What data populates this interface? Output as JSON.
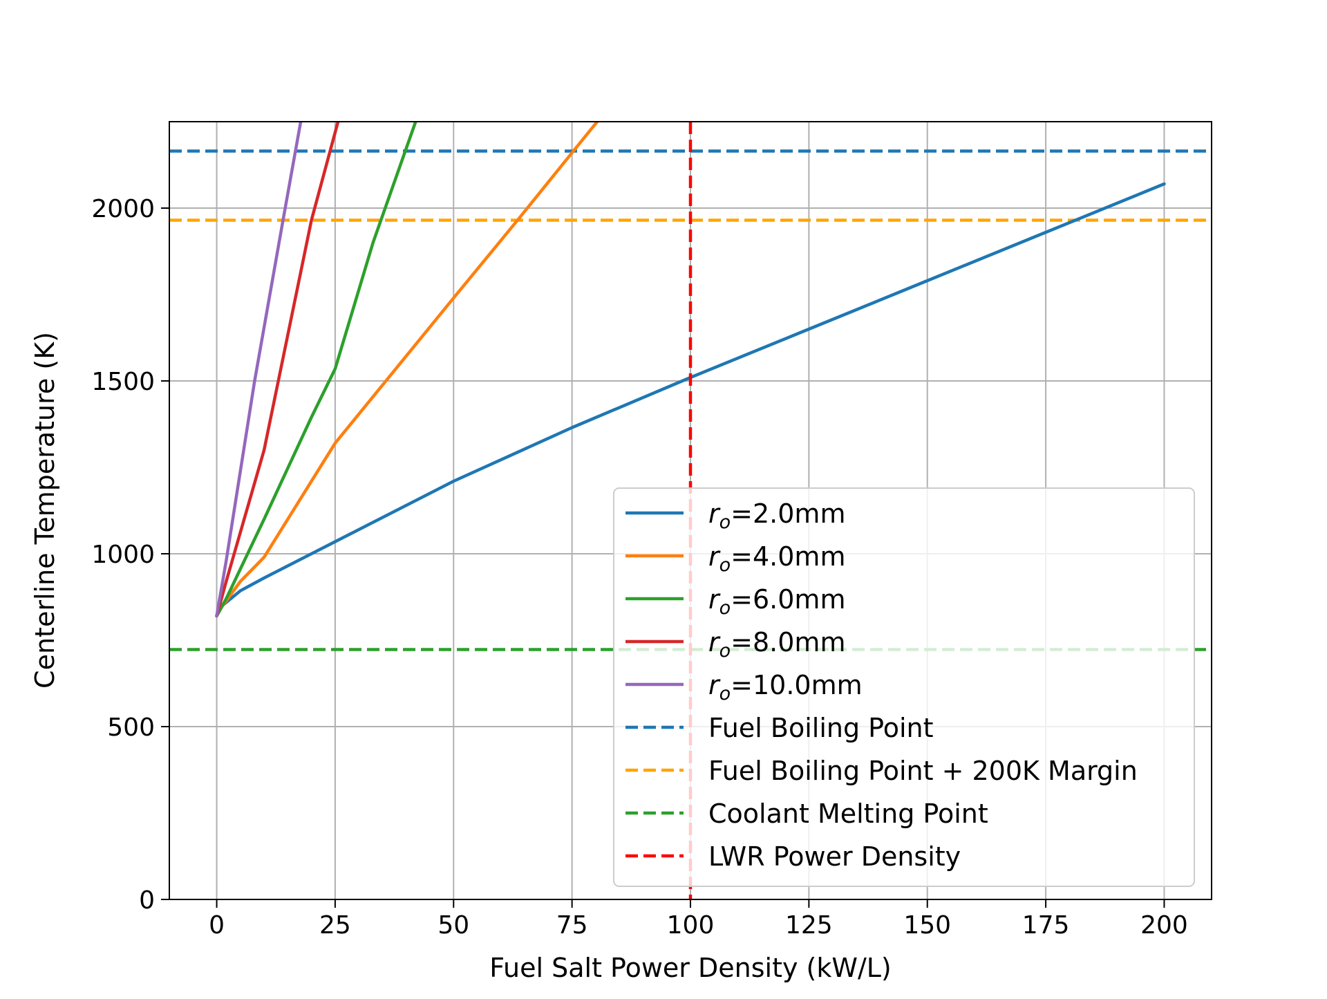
{
  "chart_data": {
    "type": "line",
    "title": "",
    "xlabel": "Fuel Salt Power Density (kW/L)",
    "ylabel": "Centerline Temperature (K)",
    "xlim": [
      -10,
      210
    ],
    "ylim": [
      0,
      2250
    ],
    "xticks": [
      0,
      25,
      50,
      75,
      100,
      125,
      150,
      175,
      200
    ],
    "yticks": [
      0,
      500,
      1000,
      1500,
      2000
    ],
    "grid": true,
    "legend_position": "lower-right",
    "series": [
      {
        "name": "r_o=2.0mm",
        "label_main": "r",
        "label_sub": "o",
        "label_rest": "=2.0mm",
        "color": "#1f77b4",
        "style": "solid",
        "x": [
          0,
          1,
          5,
          10,
          20,
          30,
          50,
          75,
          100,
          125,
          150,
          175,
          200
        ],
        "y": [
          820,
          848,
          893,
          930,
          1000,
          1070,
          1210,
          1365,
          1510,
          1650,
          1790,
          1930,
          2070
        ]
      },
      {
        "name": "r_o=4.0mm",
        "label_main": "r",
        "label_sub": "o",
        "label_rest": "=4.0mm",
        "color": "#ff7f0e",
        "style": "solid",
        "x": [
          0,
          1,
          5,
          10,
          25,
          50,
          63.5,
          75,
          81.5
        ],
        "y": [
          820,
          845,
          920,
          990,
          1320,
          1740,
          1965,
          2160,
          2270
        ]
      },
      {
        "name": "r_o=6.0mm",
        "label_main": "r",
        "label_sub": "o",
        "label_rest": "=6.0mm",
        "color": "#2ca02c",
        "style": "solid",
        "x": [
          0,
          2,
          10,
          20,
          25,
          33,
          42.5
        ],
        "y": [
          820,
          870,
          1100,
          1395,
          1535,
          1900,
          2270
        ]
      },
      {
        "name": "r_o=8.0mm",
        "label_main": "r",
        "label_sub": "o",
        "label_rest": "=8.0mm",
        "color": "#d62728",
        "style": "solid",
        "x": [
          0,
          2,
          10,
          20,
          26
        ],
        "y": [
          820,
          920,
          1300,
          1965,
          2270
        ]
      },
      {
        "name": "r_o=10.0mm",
        "label_main": "r",
        "label_sub": "o",
        "label_rest": "=10.0mm",
        "color": "#9467bd",
        "style": "solid",
        "x": [
          0,
          2,
          8,
          14,
          18
        ],
        "y": [
          820,
          980,
          1500,
          1965,
          2270
        ]
      },
      {
        "name": "Fuel Boiling Point",
        "color": "#1f77b4",
        "style": "dashed",
        "hline": 2165
      },
      {
        "name": "Fuel Boiling Point + 200K Margin",
        "color": "#ffa500",
        "style": "dashed",
        "hline": 1965
      },
      {
        "name": "Coolant Melting Point",
        "color": "#2ca02c",
        "style": "dashed",
        "hline": 723
      },
      {
        "name": "LWR Power Density",
        "color": "#ff0000",
        "style": "dashed",
        "vline": 100
      }
    ]
  }
}
